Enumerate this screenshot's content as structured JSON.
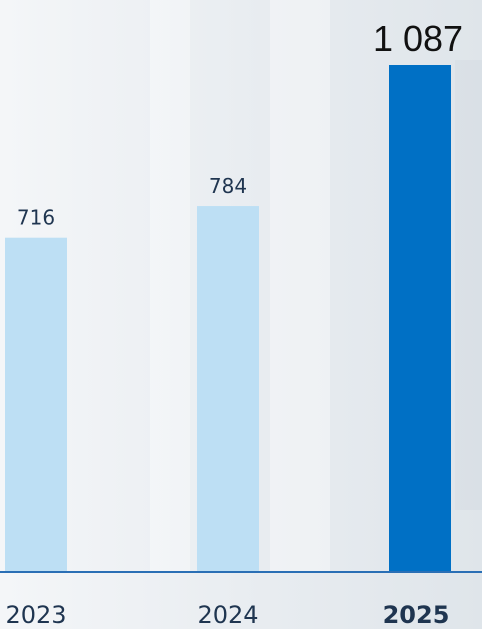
{
  "chart_data": {
    "type": "bar",
    "categories": [
      "2023",
      "2024",
      "2025"
    ],
    "values": [
      716,
      784,
      1087
    ],
    "value_labels": [
      "716",
      "784",
      "1 087"
    ],
    "colors": [
      "#bddff4",
      "#bddff4",
      "#0070c5"
    ],
    "highlight": "2025"
  }
}
